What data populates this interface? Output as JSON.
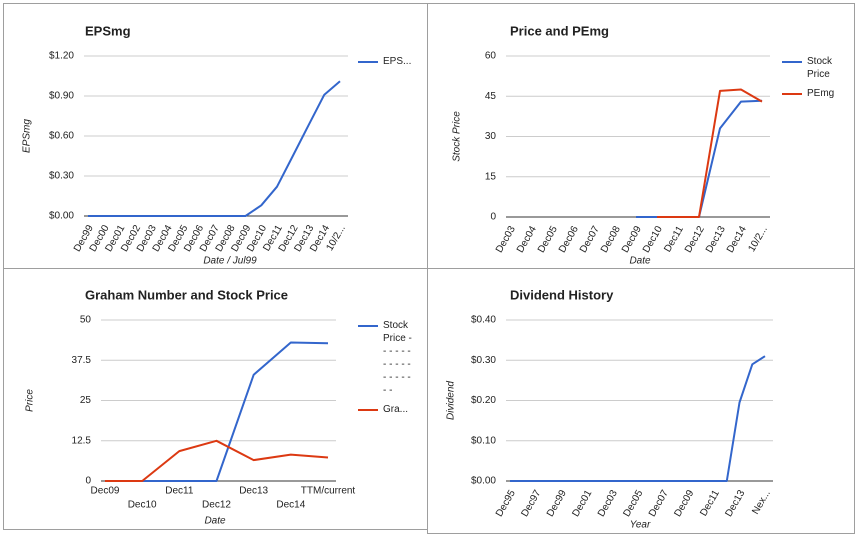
{
  "chart_data": [
    {
      "type": "line",
      "title": "EPSmg",
      "x_label": "Date / Jul99",
      "y_label": "EPSmg",
      "categories": [
        "Dec99",
        "Dec00",
        "Dec01",
        "Dec02",
        "Dec03",
        "Dec04",
        "Dec05",
        "Dec06",
        "Dec07",
        "Dec08",
        "Dec09",
        "Dec10",
        "Dec11",
        "Dec12",
        "Dec13",
        "Dec14",
        "10/2..."
      ],
      "series": [
        {
          "name": "EPS...",
          "color": "#3366cc",
          "values": [
            0,
            0,
            0,
            0,
            0,
            0,
            0,
            0,
            0,
            0,
            0,
            0.08,
            0.22,
            0.45,
            0.68,
            0.91,
            1.01
          ]
        }
      ],
      "ylim": [
        0,
        1.2
      ],
      "yticks": [
        {
          "value": 0,
          "label": "$0.00"
        },
        {
          "value": 0.3,
          "label": "$0.30"
        },
        {
          "value": 0.6,
          "label": "$0.60"
        },
        {
          "value": 0.9,
          "label": "$0.90"
        },
        {
          "value": 1.2,
          "label": "$1.20"
        }
      ],
      "grid": true
    },
    {
      "type": "line",
      "title": "Price and PEmg",
      "x_label": "Date",
      "y_label": "Stock Price",
      "categories": [
        "Dec03",
        "Dec04",
        "Dec05",
        "Dec06",
        "Dec07",
        "Dec08",
        "Dec09",
        "Dec10",
        "Dec11",
        "Dec12",
        "Dec13",
        "Dec14",
        "10/2..."
      ],
      "series": [
        {
          "name": "Stock Price",
          "color": "#3366cc",
          "values": [
            null,
            null,
            null,
            null,
            null,
            null,
            0,
            0,
            0,
            0,
            33,
            43,
            43.3
          ]
        },
        {
          "name": "PEmg",
          "color": "#dc3912",
          "values": [
            null,
            null,
            null,
            null,
            null,
            null,
            null,
            0,
            0,
            0,
            47,
            47.5,
            43
          ]
        }
      ],
      "ylim": [
        0,
        60
      ],
      "yticks": [
        0,
        15,
        30,
        45,
        60
      ],
      "grid": true
    },
    {
      "type": "line",
      "title": "Graham Number and Stock Price",
      "x_label": "Date",
      "y_label": "Price",
      "categories": [
        "Dec09",
        "Dec10",
        "Dec11",
        "Dec12",
        "Dec13",
        "Dec14",
        "TTM/current"
      ],
      "series": [
        {
          "name": "Stock Price - - - - - - - - - - - - - - - - - -",
          "color": "#3366cc",
          "values": [
            0,
            0,
            0,
            0,
            33,
            43,
            42.8
          ]
        },
        {
          "name": "Gra...",
          "color": "#dc3912",
          "values": [
            0,
            0,
            9.3,
            12.5,
            6.5,
            8.2,
            7.3
          ]
        }
      ],
      "ylim": [
        0,
        50
      ],
      "yticks": [
        0,
        12.5,
        25,
        37.5,
        50
      ],
      "grid": true
    },
    {
      "type": "line",
      "title": "Dividend History",
      "x_label": "Year",
      "y_label": "Dividend",
      "categories": [
        "Dec95",
        null,
        "Dec97",
        null,
        "Dec99",
        null,
        "Dec01",
        null,
        "Dec03",
        null,
        "Dec05",
        null,
        "Dec07",
        null,
        "Dec09",
        null,
        "Dec11",
        null,
        "Dec13",
        null,
        "Nex..."
      ],
      "values": [
        0,
        0,
        0,
        0,
        0,
        0,
        0,
        0,
        0,
        0,
        0,
        0,
        0,
        0,
        0,
        0,
        0,
        0,
        0.195,
        0.29,
        0.31
      ],
      "color": "#3366cc",
      "ylim": [
        0,
        0.4
      ],
      "yticks": [
        {
          "value": 0,
          "label": "$0.00"
        },
        {
          "value": 0.1,
          "label": "$0.10"
        },
        {
          "value": 0.2,
          "label": "$0.20"
        },
        {
          "value": 0.3,
          "label": "$0.30"
        },
        {
          "value": 0.4,
          "label": "$0.40"
        }
      ],
      "grid": true
    }
  ]
}
